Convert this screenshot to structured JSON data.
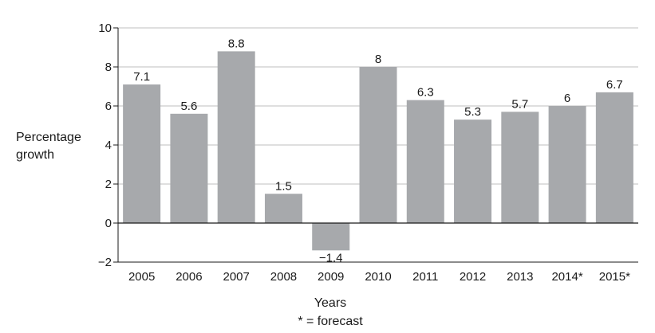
{
  "chart_data": {
    "type": "bar",
    "title": "",
    "xlabel": "Years",
    "ylabel_lines": [
      "Percentage",
      "growth"
    ],
    "note": "* = forecast",
    "categories": [
      "2005",
      "2006",
      "2007",
      "2008",
      "2009",
      "2010",
      "2011",
      "2012",
      "2013",
      "2014*",
      "2015*"
    ],
    "values": [
      7.1,
      5.6,
      8.8,
      1.5,
      -1.4,
      8,
      6.3,
      5.3,
      5.7,
      6,
      6.7
    ],
    "data_labels": [
      "7.1",
      "5.6",
      "8.8",
      "1.5",
      "−1.4",
      "8",
      "6.3",
      "5.3",
      "5.7",
      "6",
      "6.7"
    ],
    "yticks": [
      10,
      8,
      6,
      4,
      2,
      0,
      -2
    ],
    "ytick_labels": [
      "10",
      "8",
      "6",
      "4",
      "2",
      "0",
      "−2"
    ],
    "ylim": [
      -2,
      10
    ],
    "grid": true,
    "legend": "none",
    "bar_color": "#a7a9ac",
    "grid_color": "#bfbfbf",
    "axis_color": "#1a1a1a"
  }
}
